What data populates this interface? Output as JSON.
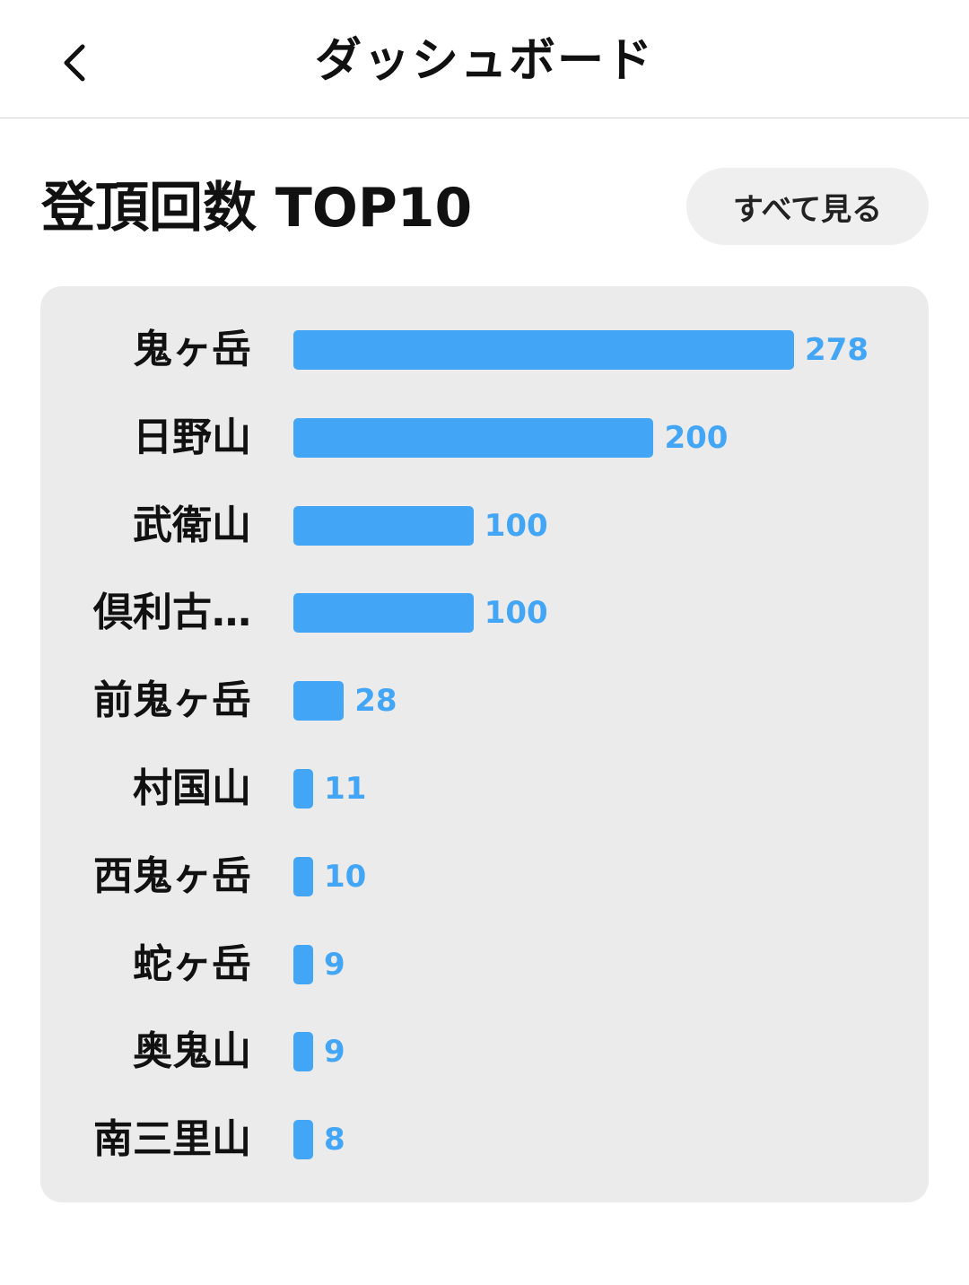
{
  "header": {
    "title": "ダッシュボード",
    "back_icon": "chevron-left-icon"
  },
  "section": {
    "title": "登頂回数 TOP10",
    "see_all_label": "すべて見る"
  },
  "colors": {
    "bar": "#42a5f5",
    "card_bg": "#ebebeb"
  },
  "chart_data": {
    "type": "bar",
    "orientation": "horizontal",
    "categories": [
      "鬼ヶ岳",
      "日野山",
      "武衛山",
      "倶利古…",
      "前鬼ヶ岳",
      "村国山",
      "西鬼ヶ岳",
      "蛇ヶ岳",
      "奥鬼山",
      "南三里山"
    ],
    "values": [
      278,
      200,
      100,
      100,
      28,
      11,
      10,
      9,
      9,
      8
    ],
    "value_labels": [
      "278",
      "200",
      "100",
      "100",
      "28",
      "11",
      "10",
      "9",
      "9",
      "8"
    ],
    "xlim": [
      0,
      278
    ]
  }
}
